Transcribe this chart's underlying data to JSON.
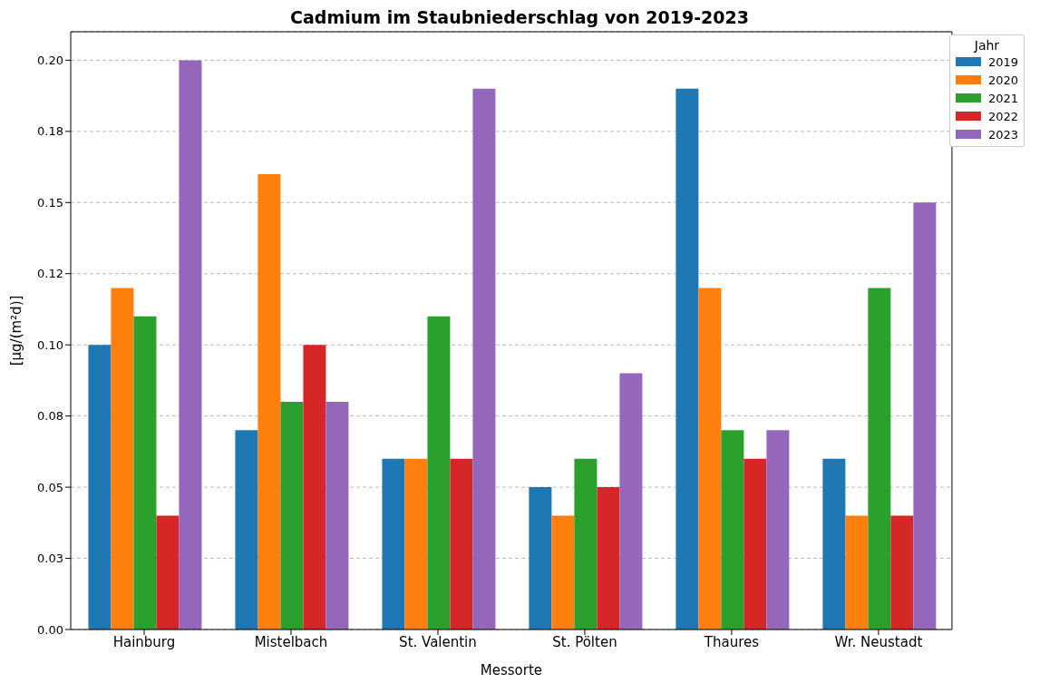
{
  "chart_data": {
    "type": "bar",
    "title": "Cadmium im Staubniederschlag von 2019-2023",
    "xlabel": "Messorte",
    "ylabel": "[µg/(m²d)]",
    "legend_title": "Jahr",
    "categories": [
      "Hainburg",
      "Mistelbach",
      "St. Valentin",
      "St. Pölten",
      "Thaures",
      "Wr. Neustadt"
    ],
    "series": [
      {
        "name": "2019",
        "color": "#1f77b4",
        "values": [
          0.1,
          0.07,
          0.06,
          0.05,
          0.19,
          0.06
        ]
      },
      {
        "name": "2020",
        "color": "#ff7f0e",
        "values": [
          0.12,
          0.16,
          0.06,
          0.04,
          0.12,
          0.04
        ]
      },
      {
        "name": "2021",
        "color": "#2ca02c",
        "values": [
          0.11,
          0.08,
          0.11,
          0.06,
          0.07,
          0.12
        ]
      },
      {
        "name": "2022",
        "color": "#d62728",
        "values": [
          0.04,
          0.1,
          0.06,
          0.05,
          0.06,
          0.04
        ]
      },
      {
        "name": "2023",
        "color": "#9467bd",
        "values": [
          0.2,
          0.08,
          0.19,
          0.09,
          0.07,
          0.15
        ]
      }
    ],
    "ylim": [
      0,
      0.21
    ],
    "yticks": [
      {
        "value": 0,
        "label": "0.00"
      },
      {
        "value": 0.025,
        "label": "0.03"
      },
      {
        "value": 0.05,
        "label": "0.05"
      },
      {
        "value": 0.075,
        "label": "0.08"
      },
      {
        "value": 0.1,
        "label": "0.10"
      },
      {
        "value": 0.125,
        "label": "0.12"
      },
      {
        "value": 0.15,
        "label": "0.15"
      },
      {
        "value": 0.175,
        "label": "0.18"
      },
      {
        "value": 0.2,
        "label": "0.20"
      }
    ],
    "grid": "y",
    "legend": "top right"
  }
}
